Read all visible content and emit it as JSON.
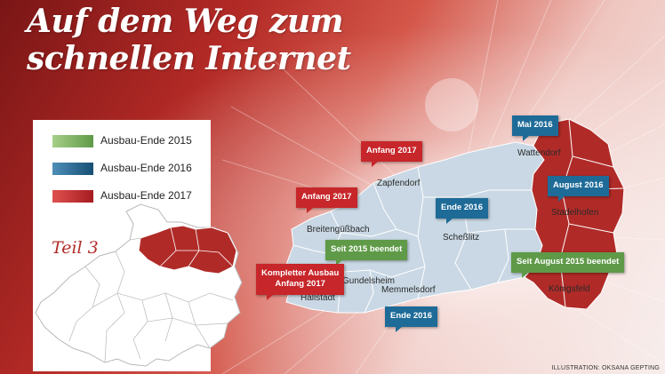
{
  "title": {
    "line1": "Auf dem Weg zum",
    "line2": "schnellen Internet"
  },
  "legend": [
    {
      "label": "Ausbau-Ende 2015",
      "color": "#7fae5d"
    },
    {
      "label": "Ausbau-Ende 2016",
      "color": "#1e6b98"
    },
    {
      "label": "Ausbau-Ende 2017",
      "color": "#c7262a"
    }
  ],
  "overview": {
    "label": "Teil 3",
    "highlight_color": "#b02b28",
    "base_color": "#ffffff"
  },
  "map": {
    "places": {
      "wattendorf": "Wattendorf",
      "zapfendorf": "Zapfendorf",
      "stadelhofen": "Stadelhofen",
      "breitenguessbach": "Breitengüßbach",
      "schesslitz": "Scheßlitz",
      "gundelsheim": "Gundelsheim",
      "memmelsdorf": "Memmelsdorf",
      "hallstadt": "Hallstadt",
      "koenigsfeld": "Königsfeld"
    },
    "badges": {
      "mai2016": {
        "line1": "Mai 2016",
        "status": "blue"
      },
      "anfang2017_zapf": {
        "line1": "Anfang 2017",
        "status": "red"
      },
      "anfang2017_breit": {
        "line1": "Anfang 2017",
        "status": "red"
      },
      "august2016": {
        "line1": "August 2016",
        "status": "blue"
      },
      "ende2016_schess": {
        "line1": "Ende 2016",
        "status": "blue"
      },
      "seit2015": {
        "line1": "Seit 2015 beendet",
        "status": "green"
      },
      "seitaug2015": {
        "line1": "Seit August 2015 beendet",
        "status": "green"
      },
      "komplett": {
        "line1": "Kompletter Ausbau",
        "line2": "Anfang 2017",
        "status": "red"
      },
      "ende2016_memm": {
        "line1": "Ende 2016",
        "status": "blue"
      }
    },
    "colors": {
      "blue_area": "#c9d8e4",
      "red_area": "#b02b28"
    }
  },
  "credit": "ILLUSTRATION: OKSANA GEPTING"
}
